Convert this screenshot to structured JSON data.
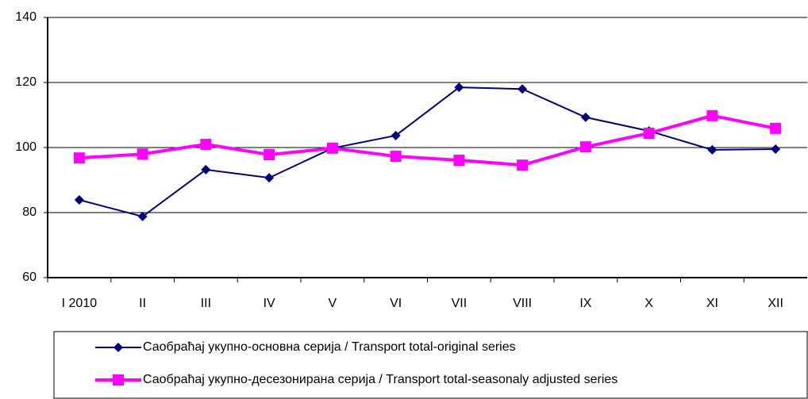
{
  "chart_data": {
    "type": "line",
    "categories": [
      "I 2010",
      "II",
      "III",
      "IV",
      "V",
      "VI",
      "VII",
      "VIII",
      "IX",
      "X",
      "XI",
      "XII"
    ],
    "series": [
      {
        "name": "Саобраћај укупно-основна серија / Transport total-original series",
        "color": "#000080",
        "marker": "diamond",
        "values": [
          83.9,
          78.8,
          93.2,
          90.7,
          99.8,
          103.7,
          118.5,
          118,
          109.3,
          105.1,
          99.3,
          99.5
        ]
      },
      {
        "name": "Саобраћај укупно-десезонирана серија / Transport total-seasonaly adjusted series",
        "color": "#ff00ff",
        "marker": "square",
        "values": [
          96.8,
          98,
          101,
          97.8,
          99.8,
          97.3,
          96.1,
          94.6,
          100.2,
          104.4,
          109.8,
          105.9
        ]
      }
    ],
    "ylim": [
      60,
      140
    ],
    "yticks": [
      60,
      80,
      100,
      120,
      140
    ],
    "grid": true
  }
}
